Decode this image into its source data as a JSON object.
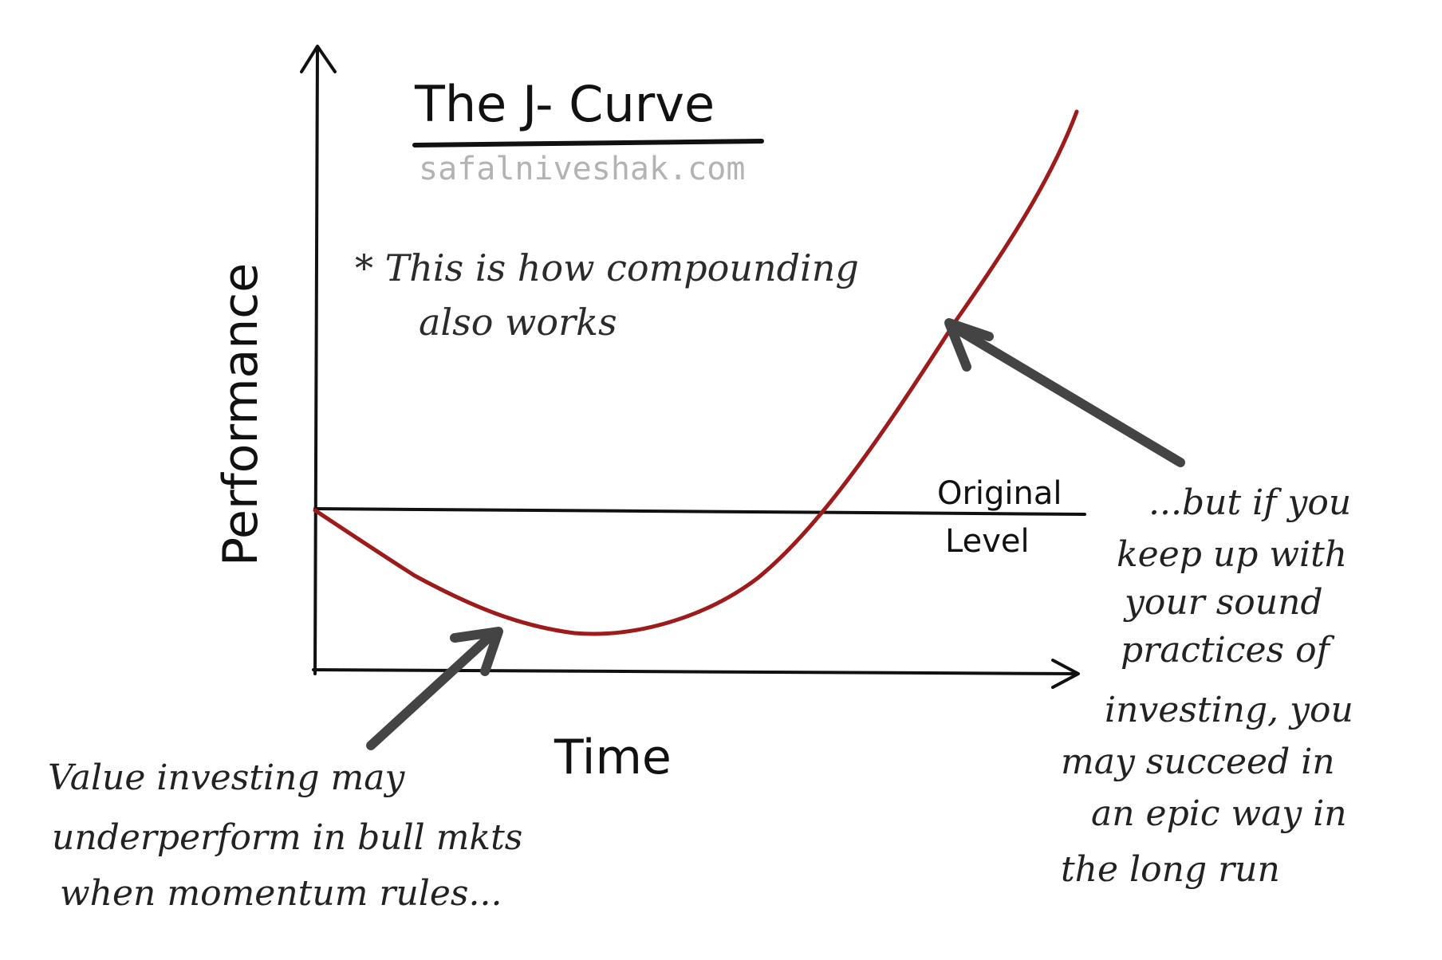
{
  "title": "The J- Curve",
  "website": "safalniveshak.com",
  "note_lines": [
    "* This is how compounding",
    "also works"
  ],
  "x_axis_label": "Time",
  "y_axis_label": "Performance",
  "original_level_lines": [
    "Original",
    "Level"
  ],
  "left_annotation_lines": [
    "Value investing may",
    "underperform in bull mkts",
    "when momentum rules..."
  ],
  "right_annotation_lines": [
    "...but if you",
    "keep up with",
    "your sound",
    "practices of",
    "investing, you",
    "may succeed in",
    "an epic way in",
    "the long run"
  ],
  "colors": {
    "curve": "#9e1b1b",
    "axis": "#111111",
    "arrow": "#444444",
    "website": "#b3b3b3"
  }
}
